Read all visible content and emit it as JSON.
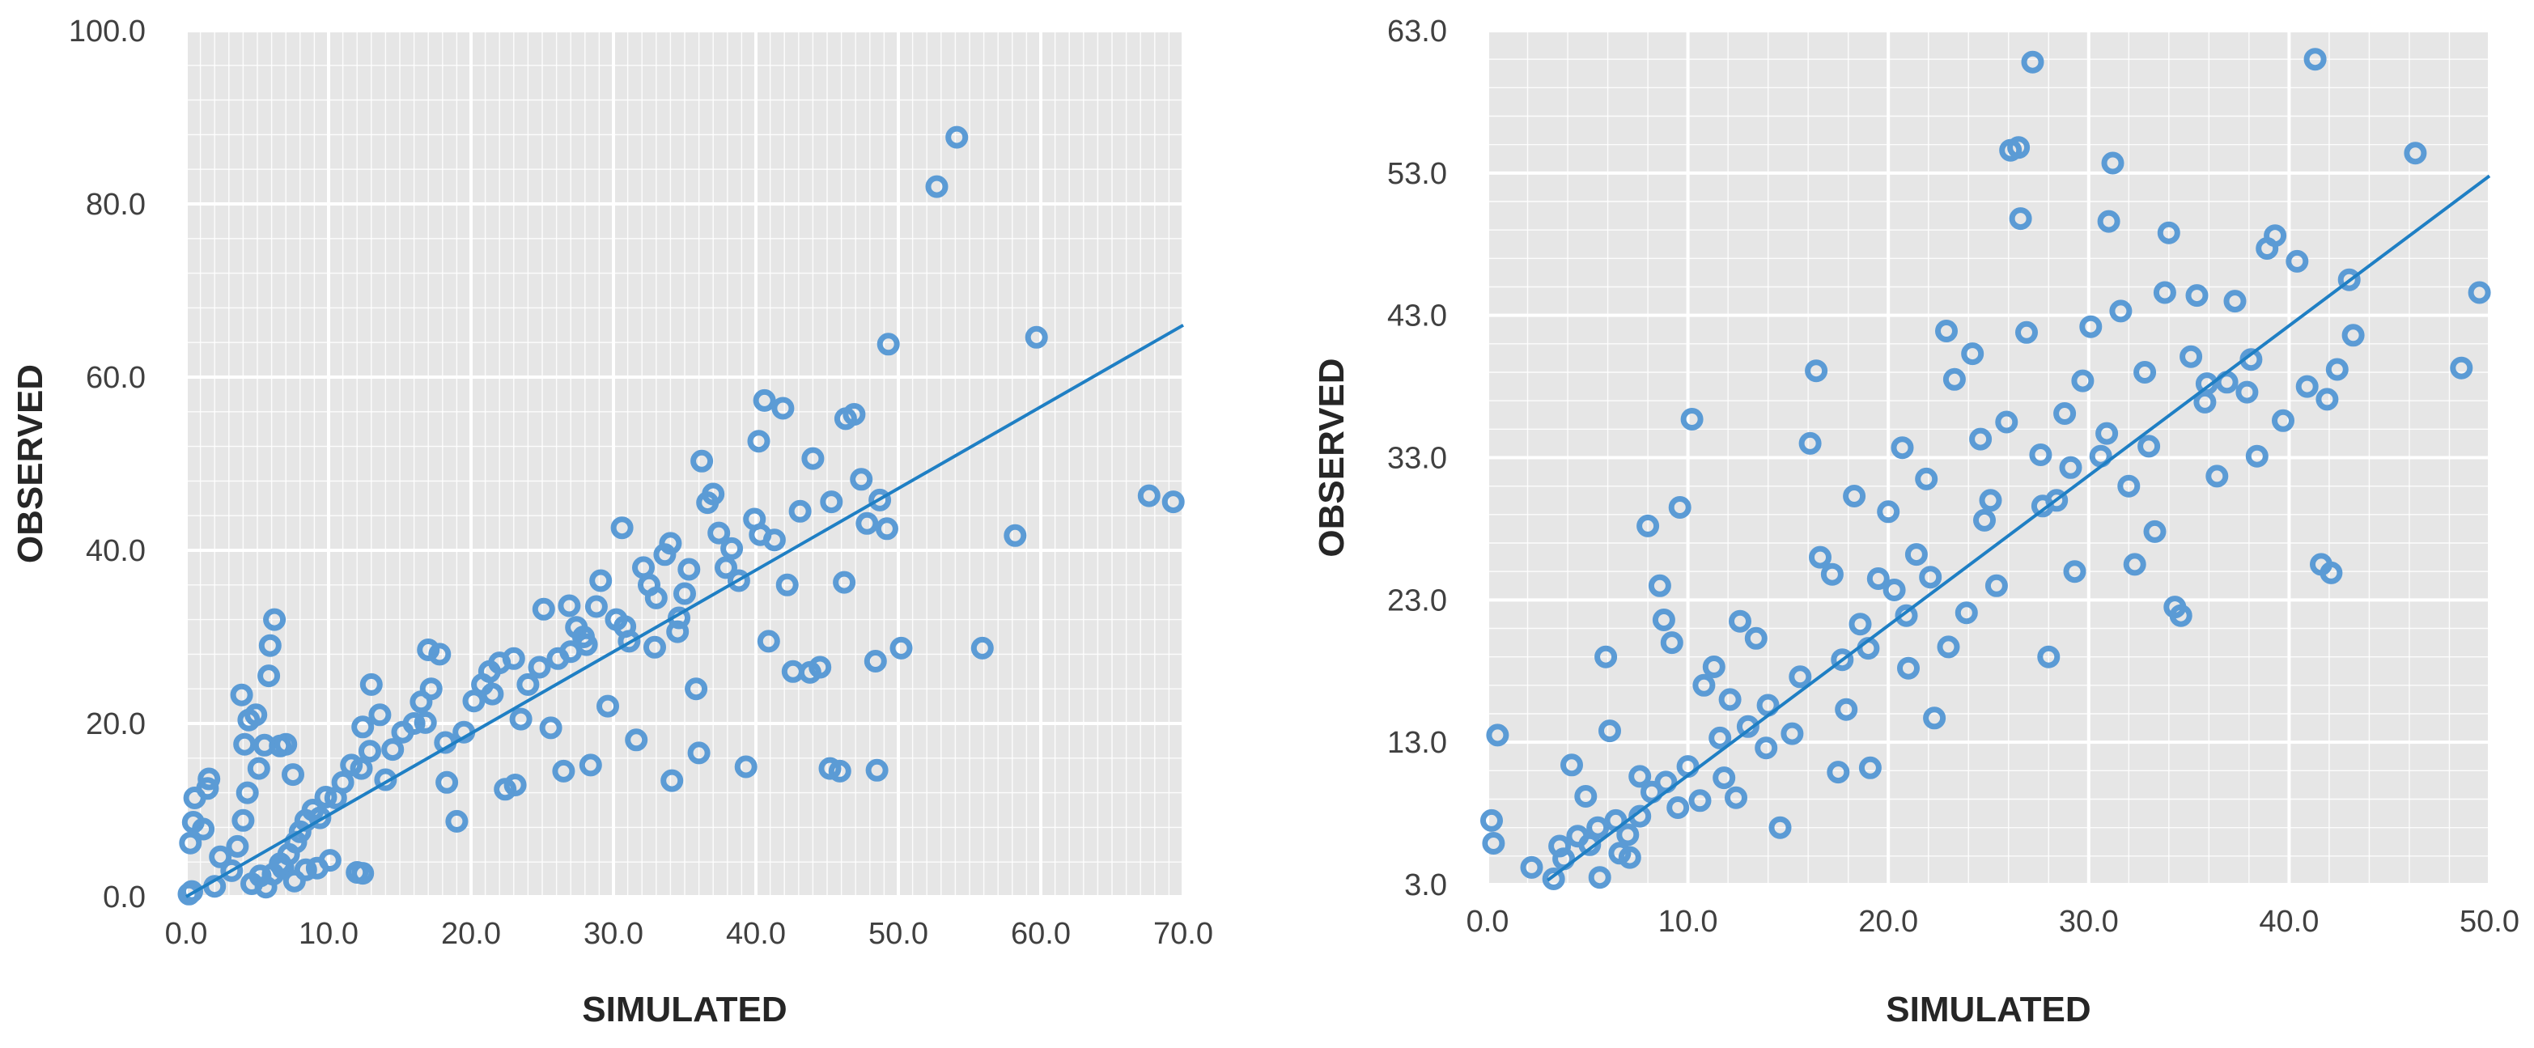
{
  "chart_data": [
    {
      "type": "scatter",
      "xlabel": "SIMULATED",
      "ylabel": "OBSERVED",
      "xlim": [
        0,
        70
      ],
      "ylim": [
        0,
        100
      ],
      "x_ticks": [
        "0.0",
        "10.0",
        "20.0",
        "30.0",
        "40.0",
        "50.0",
        "60.0",
        "70.0"
      ],
      "y_ticks": [
        "0.0",
        "20.0",
        "40.0",
        "60.0",
        "80.0",
        "100.0"
      ],
      "grid": true,
      "trendline": {
        "x": [
          0,
          70
        ],
        "y": [
          0,
          66
        ]
      },
      "points": [
        [
          0.2,
          0.3
        ],
        [
          0.4,
          0.6
        ],
        [
          0.3,
          6.2
        ],
        [
          0.5,
          8.6
        ],
        [
          0.6,
          11.4
        ],
        [
          1.5,
          12.5
        ],
        [
          1.6,
          13.6
        ],
        [
          1.2,
          7.8
        ],
        [
          2.4,
          4.6
        ],
        [
          2.0,
          1.2
        ],
        [
          3.2,
          3.0
        ],
        [
          3.6,
          5.8
        ],
        [
          4.0,
          8.8
        ],
        [
          4.3,
          12.0
        ],
        [
          4.1,
          17.6
        ],
        [
          4.4,
          20.4
        ],
        [
          3.9,
          23.3
        ],
        [
          4.9,
          21.0
        ],
        [
          5.1,
          14.8
        ],
        [
          5.5,
          17.5
        ],
        [
          5.8,
          25.5
        ],
        [
          5.9,
          29.0
        ],
        [
          6.2,
          32.0
        ],
        [
          6.6,
          17.4
        ],
        [
          7.0,
          17.6
        ],
        [
          7.5,
          14.1
        ],
        [
          4.6,
          1.5
        ],
        [
          5.2,
          2.4
        ],
        [
          5.6,
          1.1
        ],
        [
          6.1,
          2.6
        ],
        [
          6.8,
          3.3
        ],
        [
          7.2,
          4.9
        ],
        [
          7.7,
          6.3
        ],
        [
          8.0,
          7.5
        ],
        [
          8.4,
          8.8
        ],
        [
          8.9,
          10.0
        ],
        [
          9.4,
          9.1
        ],
        [
          9.8,
          11.5
        ],
        [
          10.5,
          11.4
        ],
        [
          11.0,
          13.2
        ],
        [
          11.6,
          15.2
        ],
        [
          12.3,
          14.8
        ],
        [
          12.9,
          16.8
        ],
        [
          13.0,
          24.5
        ],
        [
          12.4,
          19.6
        ],
        [
          12.0,
          2.8
        ],
        [
          12.4,
          2.7
        ],
        [
          13.6,
          21.0
        ],
        [
          14.5,
          17.0
        ],
        [
          15.2,
          19.0
        ],
        [
          16.0,
          20.0
        ],
        [
          16.5,
          22.5
        ],
        [
          17.2,
          24.0
        ],
        [
          17.0,
          28.5
        ],
        [
          17.8,
          28.0
        ],
        [
          18.3,
          13.2
        ],
        [
          19.0,
          8.7
        ],
        [
          19.5,
          19.0
        ],
        [
          20.2,
          22.6
        ],
        [
          20.8,
          24.5
        ],
        [
          21.3,
          26.0
        ],
        [
          22.0,
          27.0
        ],
        [
          22.4,
          12.4
        ],
        [
          23.1,
          12.9
        ],
        [
          23.5,
          20.5
        ],
        [
          24.0,
          24.5
        ],
        [
          24.8,
          26.5
        ],
        [
          25.1,
          33.2
        ],
        [
          25.6,
          19.5
        ],
        [
          26.1,
          27.5
        ],
        [
          26.5,
          14.5
        ],
        [
          27.0,
          28.3
        ],
        [
          27.4,
          31.1
        ],
        [
          27.9,
          30.0
        ],
        [
          28.4,
          15.2
        ],
        [
          28.8,
          33.5
        ],
        [
          29.1,
          36.5
        ],
        [
          29.6,
          22.0
        ],
        [
          30.2,
          32.0
        ],
        [
          30.6,
          42.6
        ],
        [
          31.1,
          29.5
        ],
        [
          31.6,
          18.1
        ],
        [
          32.1,
          38.0
        ],
        [
          32.5,
          36.0
        ],
        [
          33.0,
          34.5
        ],
        [
          33.6,
          39.5
        ],
        [
          34.0,
          40.8
        ],
        [
          34.1,
          13.4
        ],
        [
          34.5,
          30.6
        ],
        [
          35.0,
          35.0
        ],
        [
          35.3,
          37.8
        ],
        [
          35.8,
          24.0
        ],
        [
          36.0,
          16.6
        ],
        [
          36.2,
          50.3
        ],
        [
          36.6,
          45.5
        ],
        [
          37.0,
          46.5
        ],
        [
          37.4,
          42.0
        ],
        [
          37.9,
          38.0
        ],
        [
          38.3,
          40.2
        ],
        [
          38.8,
          36.5
        ],
        [
          39.3,
          15.0
        ],
        [
          39.9,
          43.6
        ],
        [
          40.2,
          52.6
        ],
        [
          40.6,
          57.3
        ],
        [
          40.9,
          29.5
        ],
        [
          41.3,
          41.2
        ],
        [
          41.9,
          56.4
        ],
        [
          42.2,
          36.0
        ],
        [
          42.6,
          26.0
        ],
        [
          43.1,
          44.5
        ],
        [
          43.8,
          25.9
        ],
        [
          44.5,
          26.5
        ],
        [
          45.3,
          45.6
        ],
        [
          45.9,
          14.5
        ],
        [
          46.2,
          36.3
        ],
        [
          46.3,
          55.2
        ],
        [
          46.9,
          55.7
        ],
        [
          47.4,
          48.2
        ],
        [
          47.8,
          43.1
        ],
        [
          48.4,
          27.2
        ],
        [
          48.5,
          14.6
        ],
        [
          48.7,
          45.8
        ],
        [
          49.2,
          42.5
        ],
        [
          49.3,
          63.8
        ],
        [
          50.2,
          28.7
        ],
        [
          52.7,
          82.0
        ],
        [
          54.1,
          87.7
        ],
        [
          55.9,
          28.7
        ],
        [
          58.2,
          41.7
        ],
        [
          59.7,
          64.6
        ],
        [
          67.6,
          46.3
        ],
        [
          69.3,
          45.6
        ],
        [
          45.2,
          14.8
        ],
        [
          40.3,
          41.8
        ],
        [
          44.0,
          50.6
        ],
        [
          32.9,
          28.8
        ],
        [
          34.6,
          32.2
        ],
        [
          21.5,
          23.4
        ],
        [
          23.0,
          27.5
        ],
        [
          26.9,
          33.6
        ],
        [
          28.1,
          29.1
        ],
        [
          30.8,
          31.2
        ],
        [
          18.2,
          17.8
        ],
        [
          16.8,
          20.1
        ],
        [
          14.0,
          13.5
        ],
        [
          10.1,
          4.2
        ],
        [
          9.2,
          3.3
        ],
        [
          8.4,
          3.1
        ],
        [
          7.6,
          1.8
        ],
        [
          6.6,
          3.8
        ]
      ]
    },
    {
      "type": "scatter",
      "xlabel": "SIMULATED",
      "ylabel": "OBSERVED",
      "xlim": [
        0,
        50
      ],
      "ylim": [
        3,
        63
      ],
      "x_ticks": [
        "0.0",
        "10.0",
        "20.0",
        "30.0",
        "40.0",
        "50.0"
      ],
      "y_ticks": [
        "3.0",
        "13.0",
        "23.0",
        "33.0",
        "43.0",
        "53.0",
        "63.0"
      ],
      "grid": true,
      "trendline": {
        "x": [
          3,
          50
        ],
        "y": [
          3.3,
          52.8
        ]
      },
      "points": [
        [
          0.5,
          13.5
        ],
        [
          0.2,
          7.5
        ],
        [
          0.3,
          5.9
        ],
        [
          2.2,
          4.2
        ],
        [
          3.3,
          3.4
        ],
        [
          3.8,
          4.8
        ],
        [
          3.6,
          5.7
        ],
        [
          4.5,
          6.4
        ],
        [
          4.2,
          11.4
        ],
        [
          4.9,
          9.2
        ],
        [
          5.6,
          3.5
        ],
        [
          5.9,
          19.0
        ],
        [
          6.1,
          13.8
        ],
        [
          6.4,
          7.5
        ],
        [
          7.0,
          6.5
        ],
        [
          7.6,
          10.6
        ],
        [
          8.0,
          28.2
        ],
        [
          8.6,
          24.0
        ],
        [
          8.8,
          21.6
        ],
        [
          9.2,
          20.0
        ],
        [
          9.6,
          29.5
        ],
        [
          10.2,
          35.7
        ],
        [
          10.8,
          17.0
        ],
        [
          11.3,
          18.3
        ],
        [
          11.6,
          13.3
        ],
        [
          12.1,
          16.0
        ],
        [
          12.6,
          21.5
        ],
        [
          13.0,
          14.1
        ],
        [
          13.4,
          20.3
        ],
        [
          14.0,
          15.6
        ],
        [
          14.6,
          7.0
        ],
        [
          15.2,
          13.6
        ],
        [
          16.1,
          34.0
        ],
        [
          16.4,
          39.1
        ],
        [
          16.6,
          26.0
        ],
        [
          17.2,
          24.8
        ],
        [
          17.5,
          10.9
        ],
        [
          17.9,
          15.3
        ],
        [
          18.3,
          30.3
        ],
        [
          18.6,
          21.3
        ],
        [
          19.1,
          11.2
        ],
        [
          19.5,
          24.5
        ],
        [
          20.0,
          29.2
        ],
        [
          20.3,
          23.7
        ],
        [
          20.7,
          33.7
        ],
        [
          21.0,
          18.2
        ],
        [
          21.4,
          26.2
        ],
        [
          21.9,
          31.5
        ],
        [
          22.3,
          14.7
        ],
        [
          22.9,
          41.9
        ],
        [
          23.0,
          19.7
        ],
        [
          23.3,
          38.5
        ],
        [
          23.9,
          22.1
        ],
        [
          24.2,
          40.3
        ],
        [
          24.6,
          34.3
        ],
        [
          25.1,
          30.0
        ],
        [
          25.4,
          24.0
        ],
        [
          25.9,
          35.5
        ],
        [
          26.1,
          54.6
        ],
        [
          26.5,
          54.8
        ],
        [
          26.6,
          49.8
        ],
        [
          26.9,
          41.8
        ],
        [
          27.2,
          60.8
        ],
        [
          27.6,
          33.2
        ],
        [
          28.0,
          19.0
        ],
        [
          28.4,
          30.0
        ],
        [
          28.8,
          36.1
        ],
        [
          29.3,
          25.0
        ],
        [
          29.7,
          38.4
        ],
        [
          30.1,
          42.2
        ],
        [
          30.6,
          33.1
        ],
        [
          31.0,
          49.6
        ],
        [
          31.2,
          53.7
        ],
        [
          31.6,
          43.3
        ],
        [
          32.0,
          31.0
        ],
        [
          32.3,
          25.5
        ],
        [
          32.8,
          39.0
        ],
        [
          33.3,
          27.8
        ],
        [
          33.8,
          44.6
        ],
        [
          34.0,
          48.8
        ],
        [
          34.3,
          22.5
        ],
        [
          34.6,
          21.9
        ],
        [
          35.1,
          40.1
        ],
        [
          35.4,
          44.4
        ],
        [
          35.8,
          36.9
        ],
        [
          36.4,
          31.7
        ],
        [
          36.9,
          38.3
        ],
        [
          37.3,
          44.0
        ],
        [
          37.9,
          37.6
        ],
        [
          38.4,
          33.1
        ],
        [
          38.9,
          47.7
        ],
        [
          39.3,
          48.6
        ],
        [
          39.7,
          35.6
        ],
        [
          40.4,
          46.8
        ],
        [
          40.9,
          38.0
        ],
        [
          41.3,
          61.0
        ],
        [
          41.6,
          25.5
        ],
        [
          42.1,
          24.9
        ],
        [
          42.4,
          39.2
        ],
        [
          43.0,
          45.5
        ],
        [
          43.2,
          41.6
        ],
        [
          46.3,
          54.4
        ],
        [
          48.6,
          39.3
        ],
        [
          49.5,
          44.6
        ],
        [
          7.6,
          7.8
        ],
        [
          8.2,
          9.5
        ],
        [
          8.9,
          10.2
        ],
        [
          9.5,
          8.4
        ],
        [
          10.0,
          11.3
        ],
        [
          10.6,
          8.9
        ],
        [
          5.1,
          5.8
        ],
        [
          5.5,
          7.0
        ],
        [
          6.6,
          5.2
        ],
        [
          7.1,
          4.9
        ],
        [
          11.8,
          10.5
        ],
        [
          12.4,
          9.1
        ],
        [
          13.9,
          12.6
        ],
        [
          15.6,
          17.6
        ],
        [
          24.8,
          28.6
        ],
        [
          27.7,
          29.6
        ],
        [
          29.1,
          32.3
        ],
        [
          30.9,
          34.7
        ],
        [
          33.0,
          33.8
        ],
        [
          35.9,
          38.2
        ],
        [
          38.1,
          39.9
        ],
        [
          41.9,
          37.1
        ],
        [
          22.1,
          24.6
        ],
        [
          20.9,
          21.9
        ],
        [
          19.0,
          19.6
        ],
        [
          17.7,
          18.8
        ]
      ]
    }
  ]
}
